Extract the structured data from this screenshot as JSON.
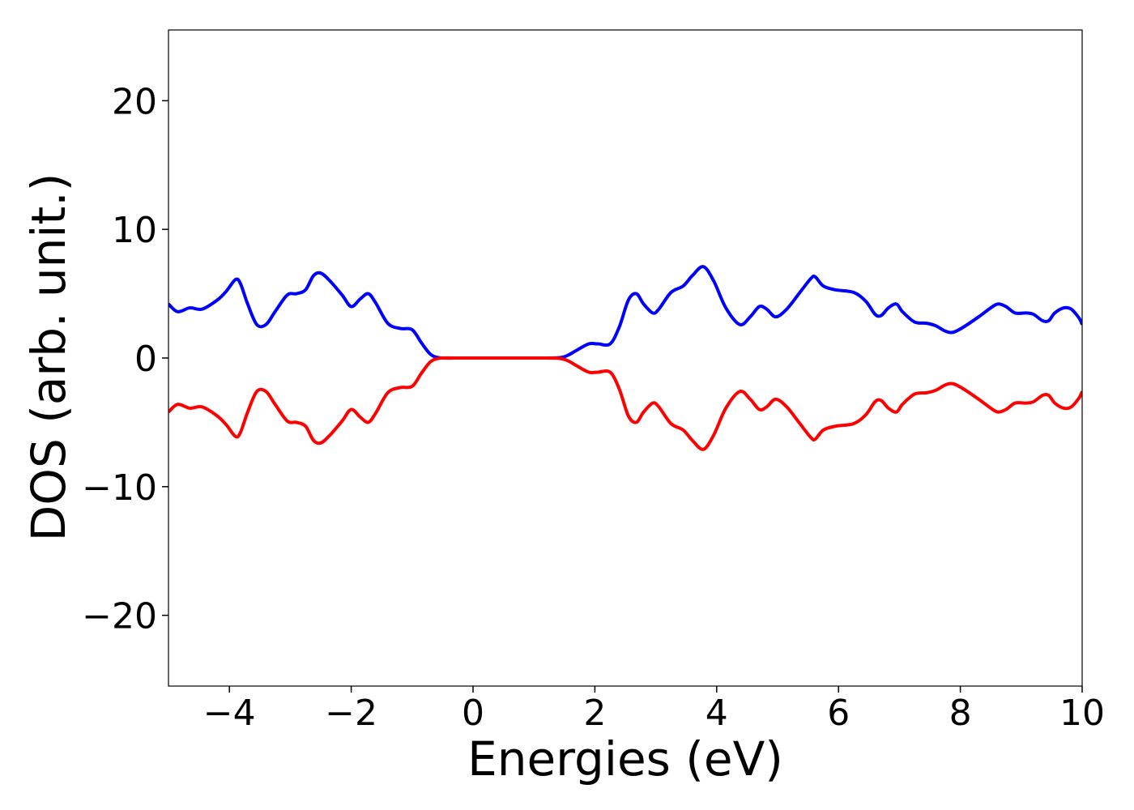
{
  "chart_data": {
    "type": "line",
    "title": "",
    "xlabel": "Energies (eV)",
    "ylabel": "DOS (arb. unit.)",
    "xlim": [
      -5,
      10
    ],
    "ylim": [
      -25.5,
      25.5
    ],
    "grid": false,
    "legend": "none",
    "x_ticks": [
      -4,
      -2,
      0,
      2,
      4,
      6,
      8,
      10
    ],
    "x_tick_labels": [
      "−4",
      "−2",
      "0",
      "2",
      "4",
      "6",
      "8",
      "10"
    ],
    "y_ticks": [
      -20,
      -10,
      0,
      10,
      20
    ],
    "y_tick_labels": [
      "−20",
      "−10",
      "0",
      "10",
      "20"
    ],
    "colors": {
      "spin_up": "#0000ff",
      "spin_down": "#ff0000"
    },
    "series": [
      {
        "color": "#0000ff",
        "x": [
          -5,
          -4.85,
          -4.65,
          -4.45,
          -4.2,
          -4.05,
          -3.9,
          -3.82,
          -3.7,
          -3.55,
          -3.4,
          -3.25,
          -3.05,
          -2.9,
          -2.75,
          -2.62,
          -2.5,
          -2.35,
          -2.15,
          -2.0,
          -1.85,
          -1.72,
          -1.6,
          -1.4,
          -1.2,
          -1.0,
          -0.85,
          -0.7,
          -0.55,
          -0.3,
          0,
          0.5,
          1.0,
          1.4,
          1.55,
          1.7,
          1.9,
          2.05,
          2.25,
          2.4,
          2.55,
          2.68,
          2.8,
          2.95,
          3.05,
          3.25,
          3.45,
          3.6,
          3.78,
          3.95,
          4.15,
          4.38,
          4.55,
          4.7,
          4.82,
          4.97,
          5.15,
          5.35,
          5.55,
          5.62,
          5.75,
          5.95,
          6.25,
          6.45,
          6.6,
          6.7,
          6.82,
          6.95,
          7.05,
          7.25,
          7.45,
          7.6,
          7.75,
          7.88,
          8.05,
          8.3,
          8.5,
          8.62,
          8.75,
          8.9,
          9.08,
          9.2,
          9.35,
          9.45,
          9.55,
          9.7,
          9.82,
          9.95,
          10.0
        ],
        "y": [
          4.2,
          3.6,
          3.9,
          3.8,
          4.5,
          5.2,
          6.1,
          5.8,
          4.2,
          2.6,
          2.6,
          3.6,
          4.9,
          5.0,
          5.3,
          6.4,
          6.6,
          6.0,
          4.9,
          4.0,
          4.6,
          5.0,
          4.3,
          2.7,
          2.3,
          2.2,
          1.2,
          0.3,
          0.02,
          0,
          0,
          0,
          0,
          0.02,
          0.2,
          0.6,
          1.1,
          1.1,
          1.1,
          2.4,
          4.5,
          5.0,
          4.2,
          3.5,
          3.8,
          5.1,
          5.6,
          6.4,
          7.1,
          6.0,
          3.9,
          2.6,
          3.2,
          4.0,
          3.8,
          3.2,
          3.8,
          5.0,
          6.2,
          6.3,
          5.6,
          5.3,
          5.1,
          4.4,
          3.4,
          3.3,
          3.9,
          4.2,
          3.6,
          2.8,
          2.7,
          2.5,
          2.1,
          2.0,
          2.4,
          3.2,
          3.9,
          4.2,
          4.0,
          3.5,
          3.5,
          3.4,
          2.9,
          2.9,
          3.5,
          3.9,
          3.8,
          3.1,
          2.6
        ]
      },
      {
        "color": "#ff0000",
        "x": [
          -5,
          -4.85,
          -4.65,
          -4.45,
          -4.2,
          -4.05,
          -3.9,
          -3.82,
          -3.7,
          -3.55,
          -3.4,
          -3.25,
          -3.05,
          -2.9,
          -2.75,
          -2.62,
          -2.5,
          -2.35,
          -2.15,
          -2.0,
          -1.85,
          -1.72,
          -1.6,
          -1.4,
          -1.2,
          -1.0,
          -0.85,
          -0.7,
          -0.55,
          -0.3,
          0,
          0.5,
          1.0,
          1.4,
          1.55,
          1.7,
          1.9,
          2.05,
          2.25,
          2.4,
          2.55,
          2.68,
          2.8,
          2.95,
          3.05,
          3.25,
          3.45,
          3.6,
          3.78,
          3.95,
          4.15,
          4.38,
          4.55,
          4.7,
          4.82,
          4.97,
          5.15,
          5.35,
          5.55,
          5.62,
          5.75,
          5.95,
          6.25,
          6.45,
          6.6,
          6.7,
          6.82,
          6.95,
          7.05,
          7.25,
          7.45,
          7.6,
          7.75,
          7.88,
          8.05,
          8.3,
          8.5,
          8.62,
          8.75,
          8.9,
          9.08,
          9.2,
          9.35,
          9.45,
          9.55,
          9.7,
          9.82,
          9.95,
          10.0
        ],
        "y": [
          -4.2,
          -3.6,
          -3.9,
          -3.8,
          -4.5,
          -5.2,
          -6.1,
          -5.8,
          -4.2,
          -2.6,
          -2.6,
          -3.6,
          -4.9,
          -5.0,
          -5.3,
          -6.4,
          -6.6,
          -6.0,
          -4.9,
          -4.0,
          -4.6,
          -5.0,
          -4.3,
          -2.7,
          -2.3,
          -2.2,
          -1.2,
          -0.3,
          -0.02,
          0,
          0,
          0,
          0,
          -0.02,
          -0.2,
          -0.6,
          -1.1,
          -1.1,
          -1.1,
          -2.4,
          -4.5,
          -5.0,
          -4.2,
          -3.5,
          -3.8,
          -5.1,
          -5.6,
          -6.4,
          -7.1,
          -6.0,
          -3.9,
          -2.6,
          -3.2,
          -4.0,
          -3.8,
          -3.2,
          -3.8,
          -5.0,
          -6.2,
          -6.3,
          -5.6,
          -5.3,
          -5.1,
          -4.4,
          -3.4,
          -3.3,
          -3.9,
          -4.2,
          -3.6,
          -2.8,
          -2.7,
          -2.5,
          -2.1,
          -2.0,
          -2.4,
          -3.2,
          -3.9,
          -4.2,
          -4.0,
          -3.5,
          -3.5,
          -3.4,
          -2.9,
          -2.9,
          -3.5,
          -3.9,
          -3.8,
          -3.1,
          -2.6
        ]
      }
    ]
  }
}
